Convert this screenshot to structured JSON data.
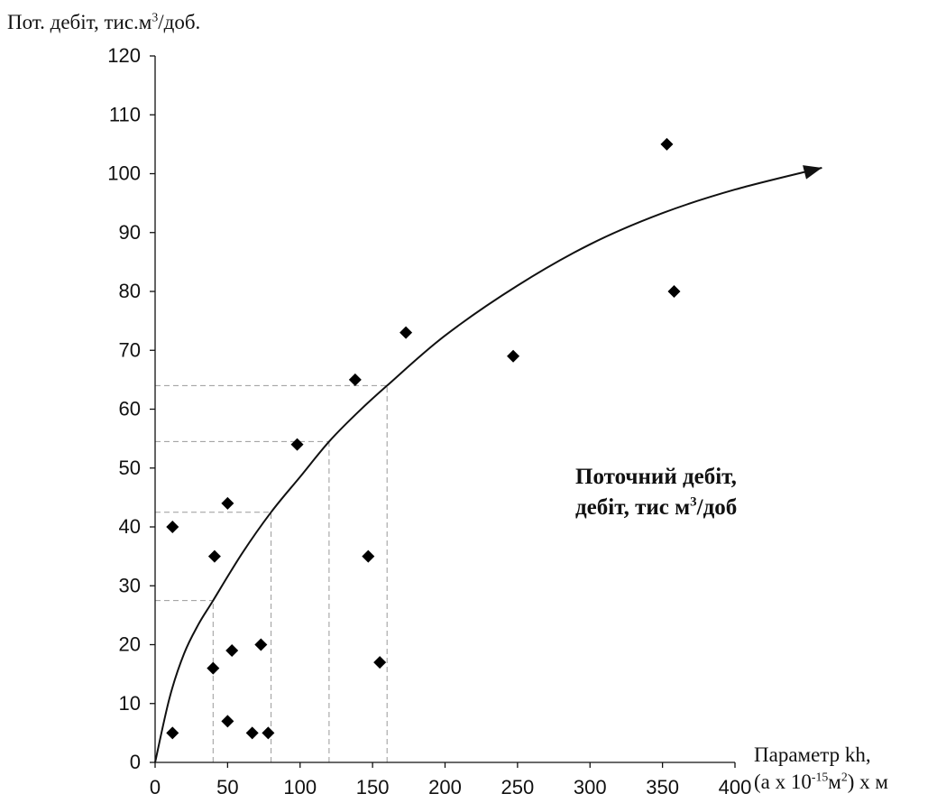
{
  "chart_data": {
    "type": "scatter",
    "ylabel": {
      "main": "Пот. дебіт, тис.м",
      "sup": "3",
      "tail": "/доб."
    },
    "xlabel": {
      "line1": "Параметр kh,",
      "line2_a": "(а х 10",
      "line2_sup1": "-15",
      "line2_b": "м",
      "line2_sup2": "2",
      "line2_c": ") х м"
    },
    "annotation": {
      "line1": "Поточний дебіт,",
      "line2_a": "дебіт, тис м",
      "line2_sup": "3",
      "line2_b": "/доб"
    },
    "xlim": [
      0,
      400
    ],
    "ylim": [
      0,
      120
    ],
    "xticks": [
      0,
      50,
      100,
      150,
      200,
      250,
      300,
      350,
      400
    ],
    "yticks": [
      0,
      10,
      20,
      30,
      40,
      50,
      60,
      70,
      80,
      90,
      100,
      110,
      120
    ],
    "grid": false,
    "points": [
      {
        "x": 12,
        "y": 5
      },
      {
        "x": 12,
        "y": 40
      },
      {
        "x": 40,
        "y": 16
      },
      {
        "x": 41,
        "y": 35
      },
      {
        "x": 50,
        "y": 7
      },
      {
        "x": 50,
        "y": 44
      },
      {
        "x": 53,
        "y": 19
      },
      {
        "x": 67,
        "y": 5
      },
      {
        "x": 73,
        "y": 20
      },
      {
        "x": 78,
        "y": 5
      },
      {
        "x": 98,
        "y": 54
      },
      {
        "x": 138,
        "y": 65
      },
      {
        "x": 147,
        "y": 35
      },
      {
        "x": 155,
        "y": 17
      },
      {
        "x": 173,
        "y": 73
      },
      {
        "x": 247,
        "y": 69
      },
      {
        "x": 353,
        "y": 105
      },
      {
        "x": 358,
        "y": 80
      }
    ],
    "trend_curve": [
      {
        "x": 0,
        "y": 0
      },
      {
        "x": 10,
        "y": 11
      },
      {
        "x": 20,
        "y": 18.5
      },
      {
        "x": 30,
        "y": 23.5
      },
      {
        "x": 40,
        "y": 27.5
      },
      {
        "x": 60,
        "y": 35.5
      },
      {
        "x": 80,
        "y": 42.5
      },
      {
        "x": 100,
        "y": 48.5
      },
      {
        "x": 120,
        "y": 54.5
      },
      {
        "x": 140,
        "y": 59.5
      },
      {
        "x": 160,
        "y": 64
      },
      {
        "x": 200,
        "y": 72.5
      },
      {
        "x": 250,
        "y": 81
      },
      {
        "x": 300,
        "y": 88
      },
      {
        "x": 350,
        "y": 93.3
      },
      {
        "x": 400,
        "y": 97.3
      },
      {
        "x": 460,
        "y": 101
      }
    ],
    "reference_lines": [
      {
        "x": 40,
        "y": 27.5
      },
      {
        "x": 80,
        "y": 42.5
      },
      {
        "x": 120,
        "y": 54.5
      },
      {
        "x": 160,
        "y": 64
      }
    ]
  }
}
